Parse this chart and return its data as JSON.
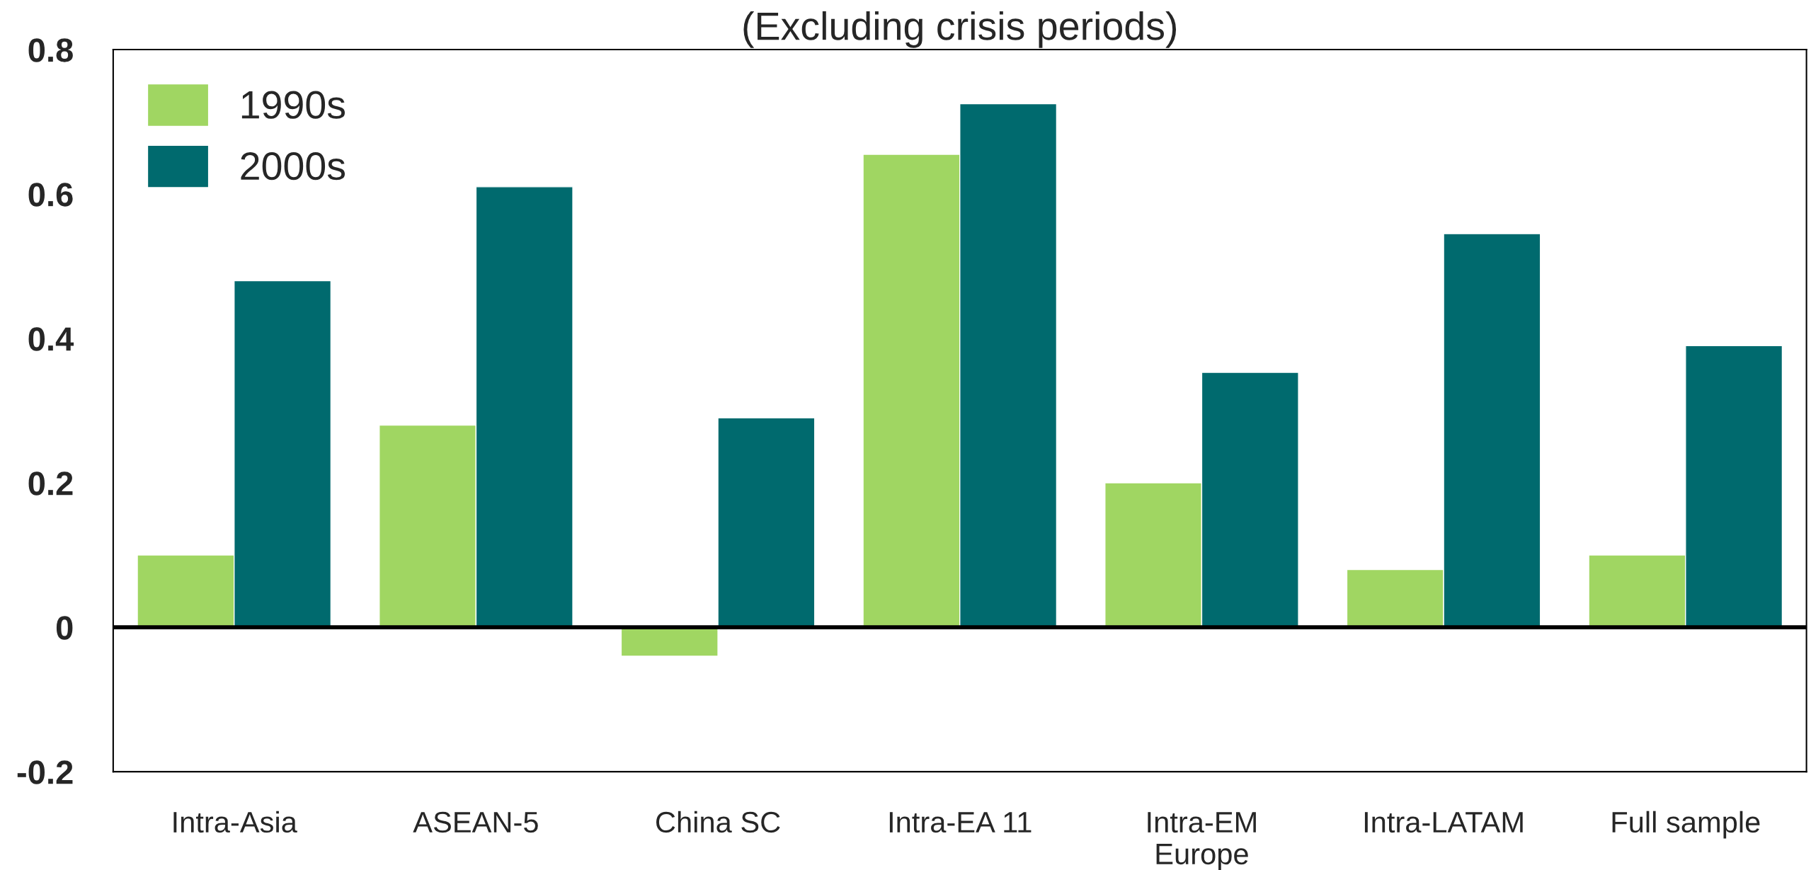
{
  "chart_data": {
    "type": "bar",
    "title": "(Excluding crisis periods)",
    "categories": [
      "Intra-Asia",
      "ASEAN-5",
      "China SC",
      "Intra-EA 11",
      "Intra-EM\nEurope",
      "Intra-LATAM",
      "Full sample"
    ],
    "series": [
      {
        "name": "1990s",
        "color": "#a0d662",
        "values": [
          0.1,
          0.28,
          -0.04,
          0.655,
          0.2,
          0.08,
          0.1
        ]
      },
      {
        "name": "2000s",
        "color": "#006a6e",
        "values": [
          0.48,
          0.61,
          0.29,
          0.725,
          0.353,
          0.545,
          0.39
        ]
      }
    ],
    "ylim": [
      -0.2,
      0.8
    ],
    "yticks": [
      {
        "value": -0.2,
        "label": "-0.2"
      },
      0,
      0.2,
      0.4,
      0.6,
      0.8
    ],
    "ref_lines": [
      {
        "axis": "y",
        "value": 0,
        "color": "#000000"
      }
    ],
    "grid": false,
    "legend": "top left"
  }
}
